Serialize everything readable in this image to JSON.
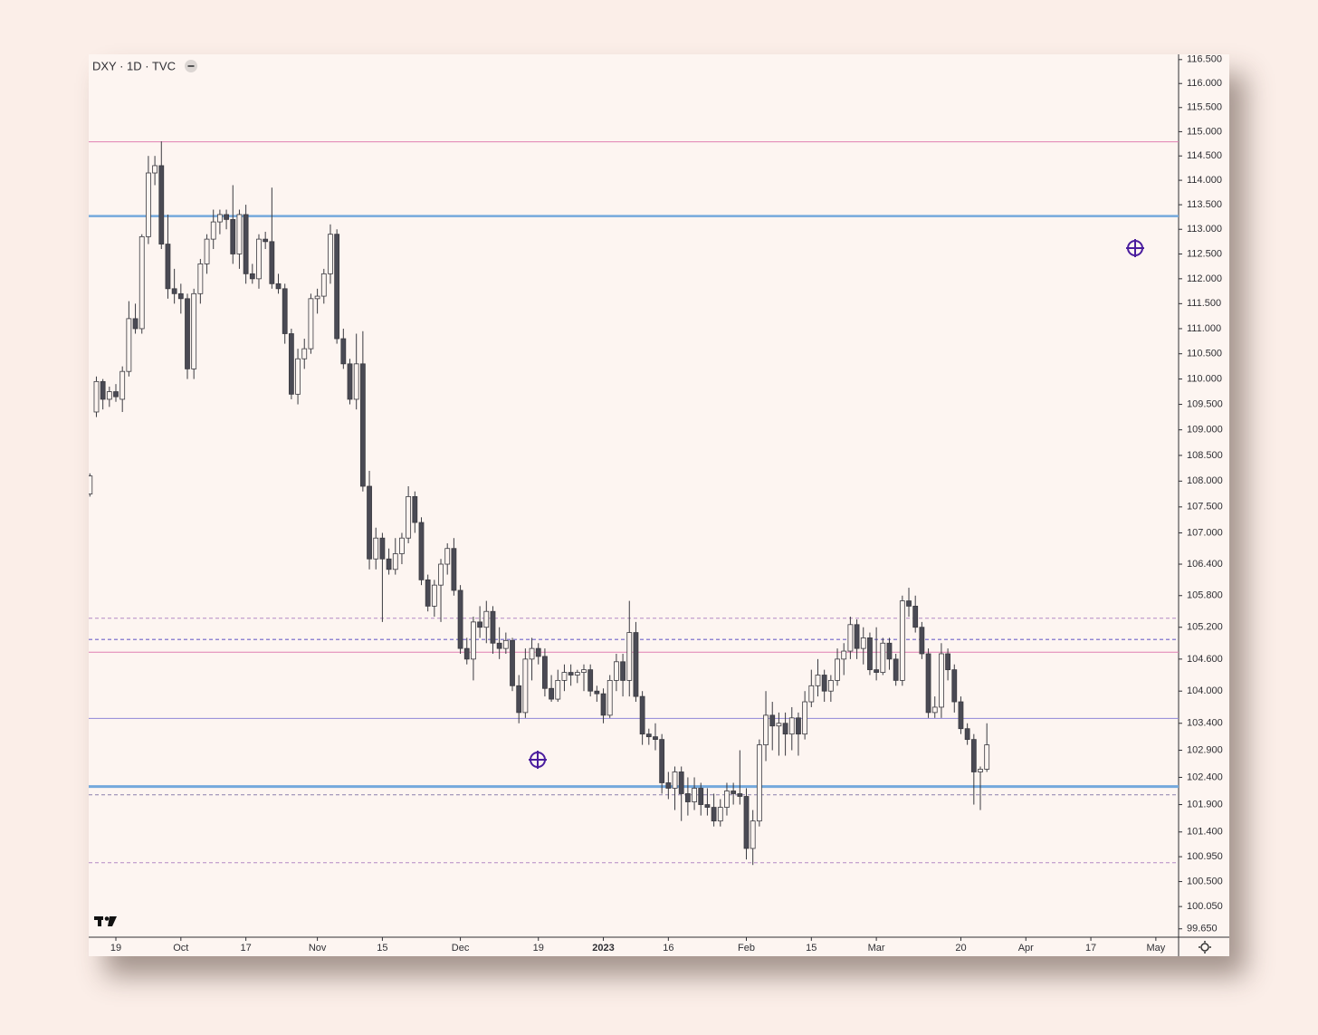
{
  "chart_data": {
    "type": "candlestick",
    "title": "DXY · 1D · TVC",
    "log_scale": true,
    "up_color": "#fdf5f1",
    "down_color": "#4a4a54",
    "outline_color": "#3a3a40",
    "x": [
      -4,
      -3,
      -2,
      -1,
      0,
      1,
      2,
      3,
      4,
      5,
      6,
      7,
      8,
      9,
      10,
      11,
      12,
      13,
      14,
      15,
      16,
      17,
      18,
      19,
      20,
      21,
      22,
      23,
      24,
      25,
      26,
      27,
      28,
      29,
      30,
      31,
      32,
      33,
      34,
      35,
      36,
      37,
      38,
      39,
      40,
      41,
      42,
      43,
      44,
      45,
      46,
      47,
      48,
      49,
      50,
      51,
      52,
      53,
      54,
      55,
      56,
      57,
      58,
      59,
      60,
      61,
      62,
      63,
      64,
      65,
      66,
      67,
      68,
      69,
      70,
      71,
      72,
      73,
      74,
      75,
      76,
      77,
      78,
      79,
      80,
      81,
      82,
      83,
      84,
      85,
      86,
      87,
      88,
      89,
      90,
      91,
      92,
      93,
      94,
      95,
      96,
      97,
      98,
      99,
      100,
      101,
      102,
      103,
      104,
      105,
      106,
      107,
      108,
      109,
      110,
      111,
      112,
      113,
      114,
      115,
      116,
      117,
      118,
      119,
      120,
      121,
      122,
      123,
      124,
      125,
      126,
      127,
      128,
      129,
      130,
      131,
      132,
      133,
      134
    ],
    "open": [
      107.75,
      109.35,
      109.95,
      109.6,
      109.75,
      109.6,
      110.15,
      111.2,
      111.0,
      112.85,
      114.15,
      114.3,
      112.7,
      111.8,
      111.7,
      111.6,
      110.2,
      111.7,
      112.3,
      112.8,
      113.15,
      113.3,
      113.2,
      112.5,
      113.3,
      112.1,
      112.0,
      112.8,
      112.75,
      111.9,
      111.8,
      110.9,
      109.7,
      110.4,
      110.6,
      111.6,
      111.65,
      112.1,
      112.9,
      110.8,
      110.3,
      109.6,
      110.3,
      107.9,
      106.5,
      106.9,
      106.5,
      106.3,
      106.6,
      106.9,
      107.7,
      107.2,
      106.1,
      105.6,
      106.0,
      106.4,
      106.7,
      105.9,
      104.8,
      104.6,
      105.3,
      105.2,
      105.5,
      104.9,
      104.8,
      104.95,
      104.1,
      103.6,
      104.6,
      104.8,
      104.65,
      104.05,
      103.85,
      104.2,
      104.35,
      104.3,
      104.35,
      104.4,
      104.0,
      103.95,
      103.55,
      104.2,
      104.55,
      104.2,
      105.1,
      103.9,
      103.2,
      103.15,
      103.1,
      102.3,
      102.2,
      102.5,
      102.1,
      101.95,
      102.2,
      101.9,
      101.85,
      101.6,
      101.85,
      102.15,
      102.1,
      102.05,
      101.1,
      101.6,
      103.0,
      103.55,
      103.35,
      103.4,
      103.2,
      103.5,
      103.2,
      103.8,
      104.1,
      104.3,
      104.0,
      104.2,
      104.6,
      104.75,
      105.25,
      104.8,
      105.0,
      104.4,
      104.35,
      104.9,
      104.6,
      104.2,
      105.7,
      105.6,
      105.2,
      104.7,
      103.6,
      103.7,
      104.7,
      104.4,
      103.8,
      103.3,
      103.1,
      102.5,
      102.55
    ],
    "high": [
      108.15,
      110.05,
      110.0,
      109.85,
      109.9,
      110.25,
      111.55,
      111.5,
      112.9,
      114.5,
      114.5,
      114.8,
      113.3,
      112.2,
      111.9,
      111.7,
      111.8,
      112.4,
      112.9,
      113.4,
      113.4,
      113.4,
      113.9,
      113.4,
      113.5,
      112.3,
      112.9,
      112.95,
      113.85,
      112.1,
      111.9,
      111.0,
      110.6,
      110.8,
      111.7,
      111.8,
      112.2,
      113.1,
      113.0,
      111.0,
      110.4,
      110.9,
      110.95,
      108.2,
      107.1,
      107.0,
      106.7,
      106.9,
      107.0,
      107.9,
      107.8,
      107.3,
      106.2,
      106.1,
      106.5,
      106.8,
      106.9,
      106.0,
      105.0,
      105.4,
      105.6,
      105.7,
      105.6,
      105.2,
      105.1,
      105.0,
      104.3,
      104.8,
      105.0,
      104.9,
      104.8,
      104.3,
      104.4,
      104.5,
      104.5,
      104.4,
      104.5,
      104.5,
      104.1,
      104.05,
      104.3,
      104.7,
      104.7,
      105.7,
      105.3,
      104.0,
      103.3,
      103.4,
      103.2,
      102.5,
      102.6,
      102.6,
      102.4,
      102.4,
      102.3,
      102.2,
      102.1,
      102.0,
      102.3,
      102.3,
      102.9,
      102.2,
      101.8,
      103.1,
      104.0,
      103.8,
      103.6,
      103.6,
      103.7,
      103.6,
      104.0,
      104.4,
      104.6,
      104.4,
      104.3,
      104.8,
      104.9,
      105.4,
      105.35,
      105.2,
      105.1,
      105.2,
      105.0,
      105.0,
      104.7,
      105.8,
      105.95,
      105.8,
      105.3,
      104.8,
      103.9,
      104.9,
      104.8,
      104.5,
      103.9,
      103.4,
      103.2,
      102.6,
      103.4
    ],
    "low": [
      107.7,
      109.25,
      109.4,
      109.45,
      109.55,
      109.35,
      110.05,
      110.9,
      110.9,
      112.7,
      113.9,
      112.6,
      111.6,
      111.5,
      111.3,
      110.0,
      110.0,
      111.5,
      112.1,
      112.6,
      112.9,
      113.0,
      112.3,
      112.2,
      111.9,
      111.9,
      111.8,
      112.6,
      111.8,
      111.7,
      110.7,
      109.6,
      109.5,
      110.2,
      110.5,
      111.3,
      111.5,
      111.9,
      110.7,
      110.2,
      109.5,
      109.4,
      107.8,
      106.3,
      106.3,
      105.3,
      106.2,
      106.2,
      106.4,
      106.8,
      107.0,
      106.0,
      105.5,
      105.4,
      105.3,
      106.2,
      105.8,
      104.7,
      104.5,
      104.2,
      105.0,
      104.9,
      104.7,
      104.6,
      104.7,
      104.0,
      103.4,
      103.5,
      104.2,
      104.5,
      103.9,
      103.8,
      103.8,
      104.0,
      104.1,
      104.15,
      104.0,
      103.9,
      103.8,
      103.4,
      103.5,
      104.0,
      103.9,
      103.9,
      103.8,
      103.0,
      103.0,
      102.9,
      102.1,
      102.0,
      101.8,
      101.6,
      101.7,
      101.8,
      101.7,
      101.7,
      101.5,
      101.5,
      101.7,
      101.9,
      101.9,
      100.9,
      100.8,
      101.5,
      102.7,
      102.9,
      102.8,
      102.8,
      102.9,
      102.8,
      103.1,
      103.7,
      103.9,
      103.8,
      103.8,
      104.1,
      104.3,
      104.6,
      104.6,
      104.5,
      104.3,
      104.2,
      104.3,
      104.4,
      104.1,
      104.1,
      105.4,
      105.1,
      104.6,
      103.5,
      103.5,
      103.5,
      104.2,
      103.6,
      103.2,
      103.0,
      101.9,
      101.8,
      102.5
    ],
    "close": [
      108.1,
      109.95,
      109.6,
      109.75,
      109.65,
      110.15,
      111.2,
      111.0,
      112.85,
      114.15,
      114.3,
      112.7,
      111.8,
      111.7,
      111.6,
      110.2,
      111.7,
      112.3,
      112.8,
      113.15,
      113.3,
      113.2,
      112.5,
      113.3,
      112.1,
      112.0,
      112.8,
      112.75,
      111.9,
      111.8,
      110.9,
      109.7,
      110.4,
      110.6,
      111.6,
      111.65,
      112.1,
      112.9,
      110.8,
      110.3,
      109.6,
      110.3,
      107.9,
      106.5,
      106.9,
      106.5,
      106.3,
      106.6,
      106.9,
      107.7,
      107.2,
      106.1,
      105.6,
      106.0,
      106.4,
      106.7,
      105.9,
      104.8,
      104.6,
      105.3,
      105.2,
      105.5,
      104.9,
      104.8,
      104.95,
      104.1,
      103.6,
      104.6,
      104.8,
      104.65,
      104.05,
      103.85,
      104.2,
      104.35,
      104.3,
      104.35,
      104.4,
      104.0,
      103.95,
      103.55,
      104.2,
      104.55,
      104.2,
      105.1,
      103.9,
      103.2,
      103.15,
      103.1,
      102.3,
      102.2,
      102.5,
      102.1,
      101.95,
      102.2,
      101.9,
      101.85,
      101.6,
      101.85,
      102.15,
      102.1,
      102.05,
      101.1,
      101.6,
      103.0,
      103.55,
      103.35,
      103.4,
      103.2,
      103.5,
      103.2,
      103.8,
      104.1,
      104.3,
      104.0,
      104.2,
      104.6,
      104.75,
      105.25,
      104.8,
      105.0,
      104.4,
      104.35,
      104.9,
      104.6,
      104.2,
      105.7,
      105.6,
      105.2,
      104.7,
      103.6,
      103.7,
      104.7,
      104.4,
      103.8,
      103.3,
      103.1,
      102.5,
      102.55,
      103.0
    ],
    "xlim": [
      -4.18,
      163.5
    ],
    "xticks": [
      {
        "value": 0,
        "label": "19"
      },
      {
        "value": 10,
        "label": "Oct"
      },
      {
        "value": 20,
        "label": "17"
      },
      {
        "value": 31,
        "label": "Nov"
      },
      {
        "value": 41,
        "label": "15"
      },
      {
        "value": 53,
        "label": "Dec"
      },
      {
        "value": 65,
        "label": "19"
      },
      {
        "value": 75,
        "label": "2023",
        "bold": true
      },
      {
        "value": 85,
        "label": "16"
      },
      {
        "value": 97,
        "label": "Feb"
      },
      {
        "value": 107,
        "label": "15"
      },
      {
        "value": 117,
        "label": "Mar"
      },
      {
        "value": 130,
        "label": "20"
      },
      {
        "value": 140,
        "label": "Apr"
      },
      {
        "value": 150,
        "label": "17"
      },
      {
        "value": 160,
        "label": "May"
      }
    ],
    "ylim": [
      99.5,
      116.61
    ],
    "yticks": [
      {
        "value": 116.5,
        "label": "116.500"
      },
      {
        "value": 116,
        "label": "116.000"
      },
      {
        "value": 115.5,
        "label": "115.500"
      },
      {
        "value": 115,
        "label": "115.000"
      },
      {
        "value": 114.5,
        "label": "114.500"
      },
      {
        "value": 114,
        "label": "114.000"
      },
      {
        "value": 113.5,
        "label": "113.500"
      },
      {
        "value": 113,
        "label": "113.000"
      },
      {
        "value": 112.5,
        "label": "112.500"
      },
      {
        "value": 112,
        "label": "112.000"
      },
      {
        "value": 111.5,
        "label": "111.500"
      },
      {
        "value": 111,
        "label": "111.000"
      },
      {
        "value": 110.5,
        "label": "110.500"
      },
      {
        "value": 110,
        "label": "110.000"
      },
      {
        "value": 109.5,
        "label": "109.500"
      },
      {
        "value": 109,
        "label": "109.000"
      },
      {
        "value": 108.5,
        "label": "108.500"
      },
      {
        "value": 108,
        "label": "108.000"
      },
      {
        "value": 107.5,
        "label": "107.500"
      },
      {
        "value": 107,
        "label": "107.000"
      },
      {
        "value": 106.4,
        "label": "106.400"
      },
      {
        "value": 105.8,
        "label": "105.800"
      },
      {
        "value": 105.2,
        "label": "105.200"
      },
      {
        "value": 104.6,
        "label": "104.600"
      },
      {
        "value": 104,
        "label": "104.000"
      },
      {
        "value": 103.4,
        "label": "103.400"
      },
      {
        "value": 102.9,
        "label": "102.900"
      },
      {
        "value": 102.4,
        "label": "102.400"
      },
      {
        "value": 101.9,
        "label": "101.900"
      },
      {
        "value": 101.4,
        "label": "101.400"
      },
      {
        "value": 100.95,
        "label": "100.950"
      },
      {
        "value": 100.5,
        "label": "100.500"
      },
      {
        "value": 100.05,
        "label": "100.050"
      },
      {
        "value": 99.65,
        "label": "99.650"
      }
    ],
    "levels": [
      {
        "value": 114.79,
        "color": "#e07fb2",
        "dashed": false,
        "width": 1
      },
      {
        "value": 113.27,
        "color": "#74a9dc",
        "dashed": false,
        "width": 2.5
      },
      {
        "value": 105.37,
        "color": "#b48ac6",
        "dashed": true,
        "width": 1
      },
      {
        "value": 104.97,
        "color": "#6f63c9",
        "dashed": true,
        "width": 1.2
      },
      {
        "value": 104.73,
        "color": "#e07fb2",
        "dashed": false,
        "width": 1
      },
      {
        "value": 103.49,
        "color": "#8f86d6",
        "dashed": false,
        "width": 1
      },
      {
        "value": 102.23,
        "color": "#74a9dc",
        "dashed": false,
        "width": 3
      },
      {
        "value": 102.08,
        "color": "#8c7fae",
        "dashed": true,
        "width": 1
      },
      {
        "value": 100.84,
        "color": "#b48ac6",
        "dashed": true,
        "width": 1
      }
    ]
  }
}
